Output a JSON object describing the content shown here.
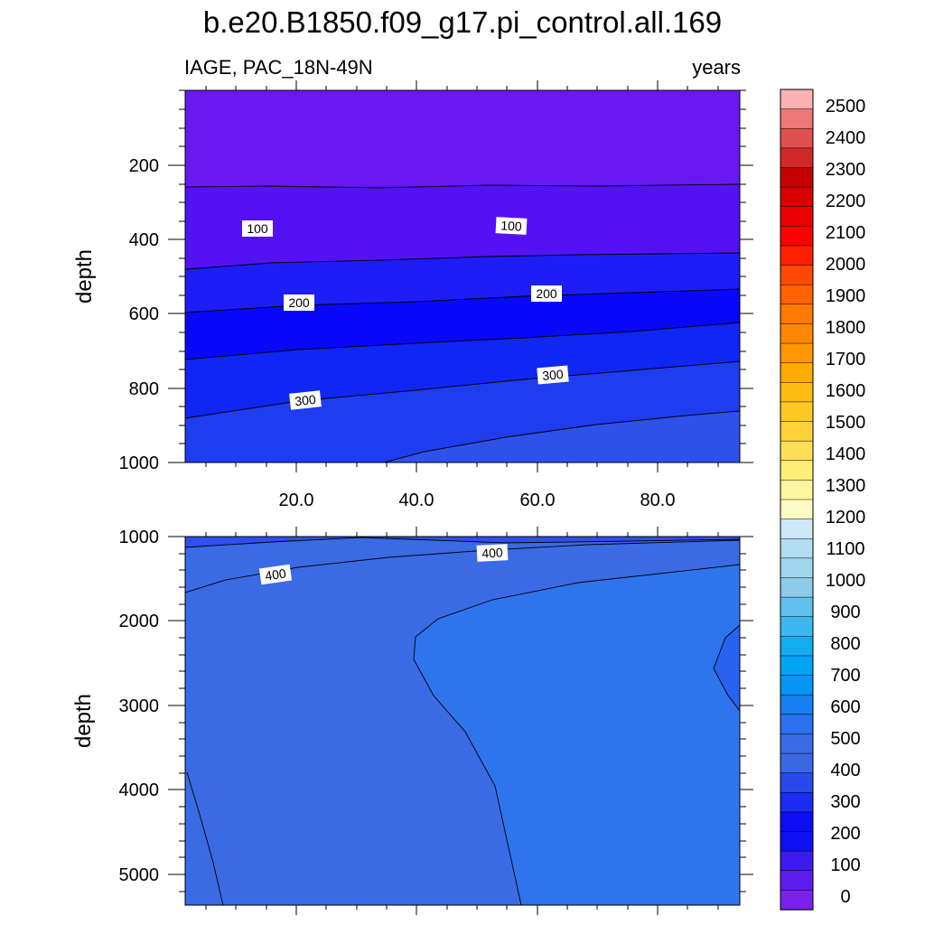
{
  "title": "b.e20.B1850.f09_g17.pi_control.all.169",
  "subtitle_left": "IAGE, PAC_18N-49N",
  "subtitle_right": "years",
  "chart_data": [
    {
      "type": "contour",
      "name": "upper",
      "x": {
        "range": [
          1,
          94
        ],
        "tick_labels": [
          "20.0",
          "40.0",
          "60.0",
          "80.0"
        ]
      },
      "y": {
        "label": "depth",
        "range": [
          0,
          1000
        ],
        "inverted": true,
        "tick_labels": [
          "200",
          "400",
          "600",
          "800",
          "1000"
        ]
      },
      "contour_labels": [
        {
          "text": "100",
          "x": 13,
          "y": 380
        },
        {
          "text": "100",
          "x": 54,
          "y": 365
        },
        {
          "text": "200",
          "x": 20,
          "y": 575
        },
        {
          "text": "200",
          "x": 61,
          "y": 545
        },
        {
          "text": "300",
          "x": 21,
          "y": 840
        },
        {
          "text": "300",
          "x": 62,
          "y": 775
        }
      ]
    },
    {
      "type": "contour",
      "name": "lower",
      "x": {
        "range": [
          1,
          94
        ]
      },
      "y": {
        "label": "depth",
        "range": [
          1000,
          5375
        ],
        "inverted": true,
        "tick_labels": [
          "1000",
          "2000",
          "3000",
          "4000",
          "5000"
        ]
      },
      "contour_labels": [
        {
          "text": "400",
          "x": 16,
          "y": 1480
        },
        {
          "text": "400",
          "x": 52,
          "y": 1200
        }
      ]
    }
  ],
  "colorbar": {
    "labels": [
      "2500",
      "2400",
      "2300",
      "2200",
      "2100",
      "2000",
      "1900",
      "1800",
      "1700",
      "1600",
      "1500",
      "1400",
      "1300",
      "1200",
      "1100",
      "1000",
      "900",
      "800",
      "700",
      "600",
      "500",
      "400",
      "300",
      "200",
      "100",
      "0"
    ],
    "colors": [
      "#fcb2b2",
      "#ee7878",
      "#e05050",
      "#d02828",
      "#c40000",
      "#d80000",
      "#ea0000",
      "#ff0000",
      "#ff2000",
      "#ff4800",
      "#ff6200",
      "#ff7800",
      "#ff8800",
      "#ff9800",
      "#ffaa00",
      "#ffbb11",
      "#ffc822",
      "#ffd23a",
      "#ffdf55",
      "#ffee78",
      "#fff4a0",
      "#fffbc6",
      "#cfe8f7",
      "#b2ddf2",
      "#a2d6ee",
      "#8ccbea",
      "#62c0ed",
      "#3cb7f0",
      "#14acf0",
      "#04a4f4",
      "#0894f4",
      "#167ff2",
      "#2a72ee",
      "#3a6ae4",
      "#3a68e2",
      "#2a48ea",
      "#1a2cf0",
      "#0c0cf5",
      "#1010f4",
      "#3c1aee",
      "#5c1cec",
      "#7a22ea"
    ]
  }
}
